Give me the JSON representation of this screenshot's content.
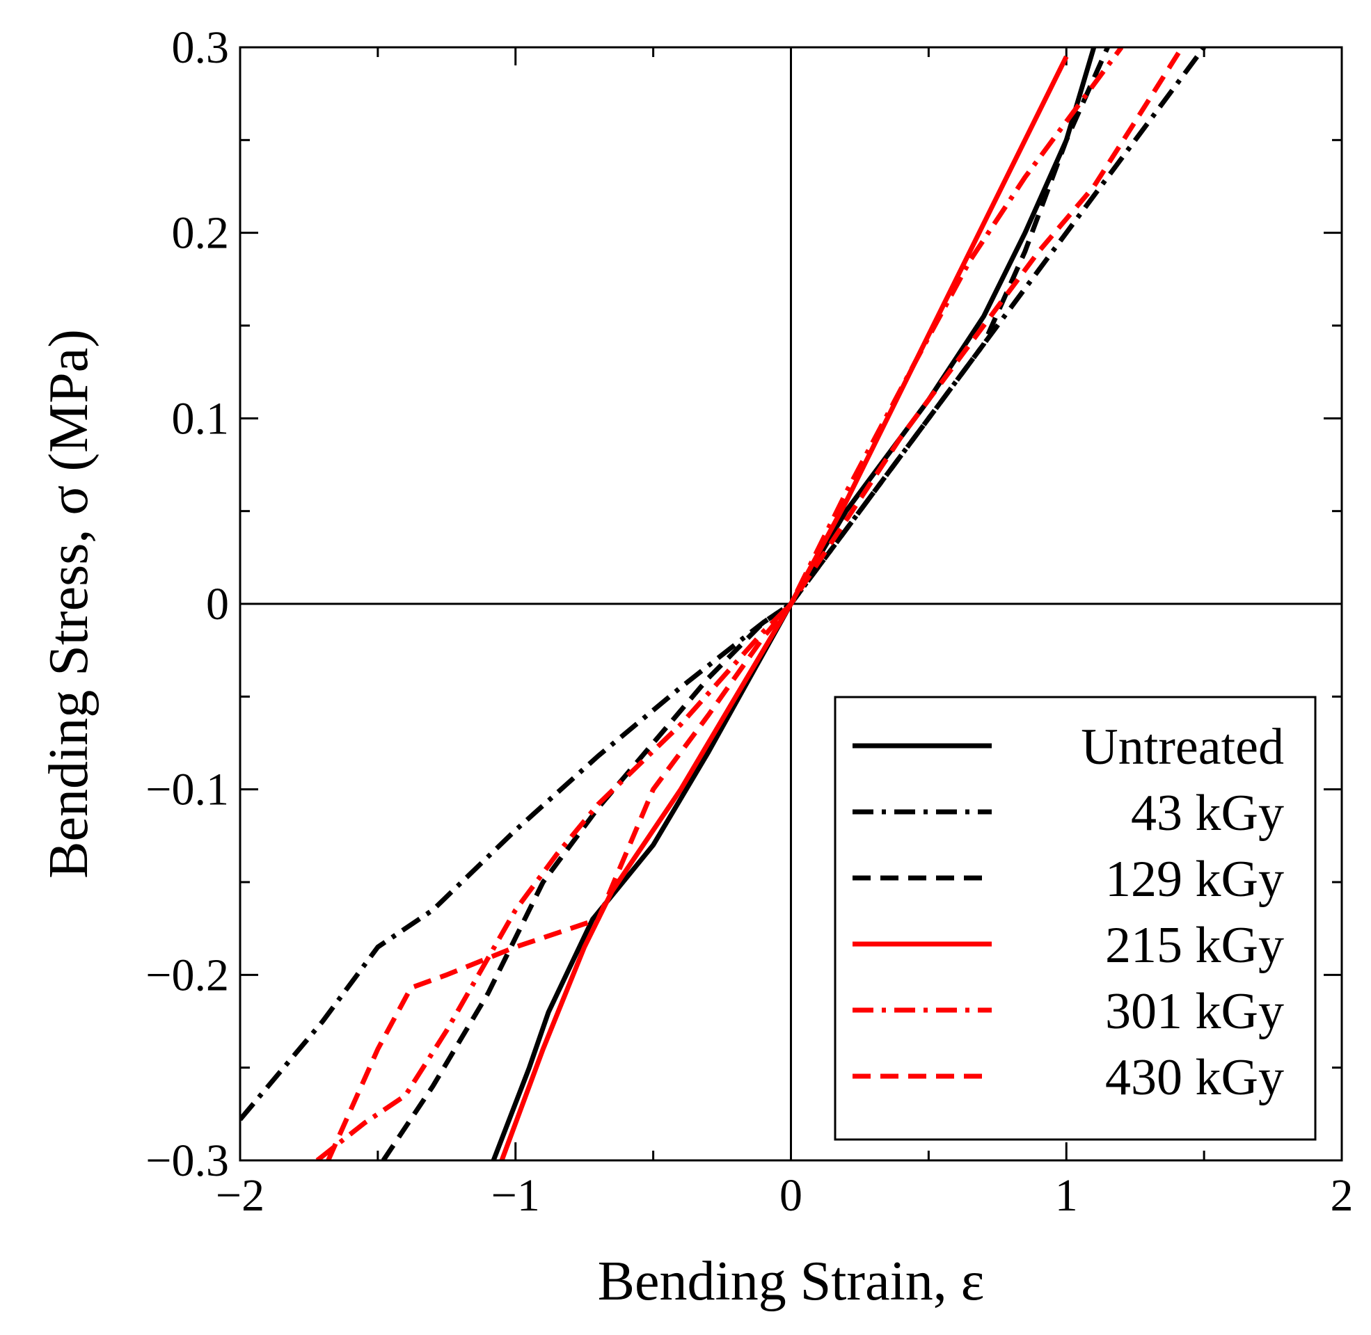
{
  "chart_data": {
    "type": "line",
    "title": "",
    "xlabel": "Bending Strain, ε",
    "ylabel": "Bending Stress,  σ (MPa)",
    "xlim": [
      -2,
      2
    ],
    "ylim": [
      -0.3,
      0.3
    ],
    "x_ticks": [
      -2,
      -1,
      0,
      1,
      2
    ],
    "x_tick_labels": [
      "−2",
      "−1",
      "0",
      "1",
      "2"
    ],
    "y_ticks": [
      0.3,
      0.2,
      0.1,
      0,
      -0.1,
      -0.2,
      -0.3
    ],
    "y_tick_labels": [
      "0.3",
      "0.2",
      "0.1",
      "0",
      "−0.1",
      "−0.2",
      "−0.3"
    ],
    "grid": false,
    "zero_lines": true,
    "legend_position": "bottom-right",
    "series": [
      {
        "name": "Untreated",
        "color": "#000000",
        "dash": "solid",
        "x": [
          -1.08,
          -0.95,
          -0.88,
          -0.72,
          -0.5,
          -0.3,
          -0.15,
          0,
          0.2,
          0.5,
          0.7,
          0.85,
          1.0,
          1.1
        ],
        "y": [
          -0.3,
          -0.25,
          -0.22,
          -0.17,
          -0.13,
          -0.08,
          -0.04,
          0,
          0.05,
          0.11,
          0.155,
          0.2,
          0.25,
          0.3
        ]
      },
      {
        "name": "43 kGy",
        "color": "#000000",
        "dash": "dashdot",
        "x": [
          -2.0,
          -1.7,
          -1.5,
          -1.3,
          -1.0,
          -0.7,
          -0.4,
          -0.1,
          0,
          0.1,
          0.3,
          0.55,
          0.7,
          0.9,
          1.1,
          1.3,
          1.5
        ],
        "y": [
          -0.278,
          -0.225,
          -0.185,
          -0.165,
          -0.122,
          -0.082,
          -0.045,
          -0.01,
          0,
          0.02,
          0.06,
          0.11,
          0.14,
          0.18,
          0.22,
          0.26,
          0.3
        ]
      },
      {
        "name": "129 kGy",
        "color": "#000000",
        "dash": "dashed",
        "x": [
          -1.48,
          -1.3,
          -1.1,
          -0.9,
          -0.7,
          -0.5,
          -0.3,
          -0.1,
          0,
          0.15,
          0.35,
          0.55,
          0.7,
          0.85,
          1.0,
          1.15
        ],
        "y": [
          -0.3,
          -0.26,
          -0.21,
          -0.15,
          -0.11,
          -0.075,
          -0.04,
          -0.01,
          0,
          0.03,
          0.07,
          0.11,
          0.14,
          0.19,
          0.25,
          0.3
        ]
      },
      {
        "name": "215 kGy",
        "color": "#ff0000",
        "dash": "solid",
        "x": [
          -1.05,
          -0.9,
          -0.75,
          -0.65,
          -0.4,
          -0.2,
          0,
          0.2,
          0.4,
          0.6,
          0.8,
          1.0
        ],
        "y": [
          -0.3,
          -0.24,
          -0.185,
          -0.155,
          -0.1,
          -0.05,
          0,
          0.055,
          0.115,
          0.175,
          0.235,
          0.295
        ]
      },
      {
        "name": "301 kGy",
        "color": "#ff0000",
        "dash": "dashdot",
        "x": [
          -1.72,
          -1.55,
          -1.4,
          -1.25,
          -1.0,
          -0.85,
          -0.7,
          -0.4,
          -0.1,
          0,
          0.2,
          0.45,
          0.65,
          0.85,
          1.05,
          1.2
        ],
        "y": [
          -0.3,
          -0.28,
          -0.265,
          -0.23,
          -0.165,
          -0.135,
          -0.108,
          -0.065,
          -0.015,
          0,
          0.06,
          0.13,
          0.185,
          0.23,
          0.27,
          0.3
        ]
      },
      {
        "name": "430 kGy",
        "color": "#ff0000",
        "dash": "dashed",
        "x": [
          -1.68,
          -1.5,
          -1.38,
          -1.25,
          -1.0,
          -0.7,
          -0.5,
          -0.3,
          -0.1,
          0,
          0.2,
          0.4,
          0.65,
          0.9,
          1.1,
          1.25,
          1.42
        ],
        "y": [
          -0.3,
          -0.24,
          -0.207,
          -0.2,
          -0.185,
          -0.17,
          -0.1,
          -0.06,
          -0.018,
          0,
          0.045,
          0.09,
          0.14,
          0.19,
          0.225,
          0.26,
          0.3
        ]
      }
    ]
  }
}
